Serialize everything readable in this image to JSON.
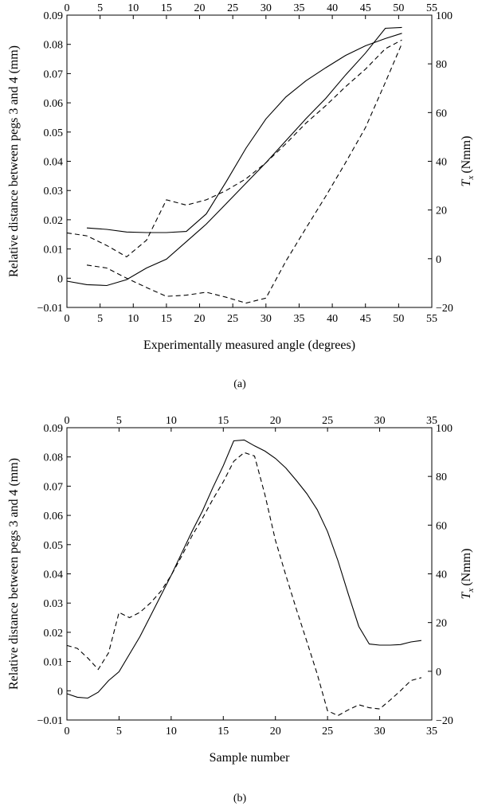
{
  "chart_data": [
    {
      "panel_label": "(a)",
      "type": "line",
      "xlabel": "Experimentally measured angle (degrees)",
      "ylabel_left": "Relative distance between pegs 3 and 4 (mm)",
      "ylabel_right_symbol": "T",
      "ylabel_right_sub": "x",
      "ylabel_right_unit": "(Nmm)",
      "xlim": [
        0,
        55
      ],
      "ylim_left": [
        -0.01,
        0.09
      ],
      "ylim_right": [
        -20,
        100
      ],
      "x_ticks": [
        "0",
        "5",
        "10",
        "15",
        "20",
        "25",
        "30",
        "35",
        "40",
        "45",
        "50",
        "55"
      ],
      "y_left_ticks": [
        "−0.01",
        "0",
        "0.01",
        "0.02",
        "0.03",
        "0.04",
        "0.05",
        "0.06",
        "0.07",
        "0.08",
        "0.09"
      ],
      "y_right_ticks": [
        "−20",
        "0",
        "20",
        "40",
        "60",
        "80",
        "100"
      ],
      "series": [
        {
          "style": "solid",
          "axis": "left",
          "x": [
            0,
            3,
            6,
            9,
            12,
            15,
            18,
            21,
            24,
            27,
            30,
            33,
            36,
            39,
            42,
            45,
            48,
            50.5
          ],
          "y": [
            -0.001,
            -0.0022,
            -0.0025,
            -0.0005,
            0.0035,
            0.0065,
            0.0125,
            0.0185,
            0.0255,
            0.0325,
            0.0395,
            0.047,
            0.0545,
            0.0615,
            0.0695,
            0.077,
            0.0855,
            0.0858
          ]
        },
        {
          "style": "solid",
          "axis": "left",
          "x": [
            3,
            6,
            9,
            12,
            15,
            18,
            21,
            24,
            27,
            30,
            33,
            36,
            39,
            42,
            45,
            48,
            50.5
          ],
          "y": [
            0.0172,
            0.0167,
            0.0158,
            0.0156,
            0.0156,
            0.016,
            0.022,
            0.033,
            0.0445,
            0.0545,
            0.062,
            0.0675,
            0.072,
            0.0762,
            0.0795,
            0.082,
            0.0838
          ]
        },
        {
          "style": "dashed",
          "axis": "left",
          "x": [
            0,
            3,
            6,
            9,
            12,
            15,
            18,
            21,
            24,
            27,
            30,
            33,
            36,
            39,
            42,
            45,
            48,
            50.5
          ],
          "y": [
            0.0155,
            0.0145,
            0.0112,
            0.0073,
            0.013,
            0.0268,
            0.025,
            0.0268,
            0.03,
            0.034,
            0.0395,
            0.046,
            0.053,
            0.059,
            0.0655,
            0.0715,
            0.0785,
            0.0815
          ]
        },
        {
          "style": "dashed",
          "axis": "left",
          "x": [
            3,
            6,
            9,
            12,
            15,
            18,
            21,
            24,
            27,
            30,
            33,
            36,
            39,
            42,
            45,
            48,
            50.5
          ],
          "y": [
            0.0045,
            0.0035,
            0.0,
            -0.0032,
            -0.0062,
            -0.0058,
            -0.0048,
            -0.0065,
            -0.0085,
            -0.0068,
            0.0058,
            0.017,
            0.028,
            0.0395,
            0.0515,
            0.067,
            0.0803
          ]
        }
      ]
    },
    {
      "panel_label": "(b)",
      "type": "line",
      "xlabel": "Sample number",
      "ylabel_left": "Relative distance between pegs 3 and 4 (mm)",
      "ylabel_right_symbol": "T",
      "ylabel_right_sub": "x",
      "ylabel_right_unit": "(Nmm)",
      "xlim": [
        0,
        35
      ],
      "ylim_left": [
        -0.01,
        0.09
      ],
      "ylim_right": [
        -20,
        100
      ],
      "x_ticks": [
        "0",
        "5",
        "10",
        "15",
        "20",
        "25",
        "30",
        "35"
      ],
      "y_left_ticks": [
        "−0.01",
        "0",
        "0.01",
        "0.02",
        "0.03",
        "0.04",
        "0.05",
        "0.06",
        "0.07",
        "0.08",
        "0.09"
      ],
      "y_right_ticks": [
        "−20",
        "0",
        "20",
        "40",
        "60",
        "80",
        "100"
      ],
      "series": [
        {
          "style": "solid",
          "axis": "left",
          "x": [
            0,
            1,
            2,
            3,
            4,
            5,
            6,
            7,
            8,
            9,
            10,
            11,
            12,
            13,
            14,
            15,
            16,
            17,
            18,
            19,
            20,
            21,
            22,
            23,
            24,
            25,
            26,
            27,
            28,
            29,
            30,
            31,
            32,
            33,
            34
          ],
          "y": [
            -0.001,
            -0.0022,
            -0.0025,
            -0.0005,
            0.0035,
            0.0065,
            0.0125,
            0.0185,
            0.0255,
            0.0325,
            0.0395,
            0.047,
            0.0545,
            0.0615,
            0.0695,
            0.077,
            0.0855,
            0.0858,
            0.0838,
            0.082,
            0.0795,
            0.0762,
            0.072,
            0.0675,
            0.062,
            0.0545,
            0.0445,
            0.033,
            0.022,
            0.016,
            0.0156,
            0.0156,
            0.0158,
            0.0167,
            0.0172
          ]
        },
        {
          "style": "dashed",
          "axis": "left",
          "x": [
            0,
            1,
            2,
            3,
            4,
            5,
            6,
            7,
            8,
            9,
            10,
            11,
            12,
            13,
            14,
            15,
            16,
            17,
            18,
            19,
            20,
            21,
            22,
            23,
            24,
            25,
            26,
            27,
            28,
            29,
            30,
            31,
            32,
            33,
            34
          ],
          "y": [
            0.0155,
            0.0145,
            0.0112,
            0.0073,
            0.013,
            0.0268,
            0.025,
            0.0268,
            0.03,
            0.034,
            0.0395,
            0.046,
            0.053,
            0.059,
            0.0655,
            0.0715,
            0.0785,
            0.0815,
            0.0803,
            0.067,
            0.0515,
            0.0395,
            0.028,
            0.017,
            0.0058,
            -0.0068,
            -0.0085,
            -0.0065,
            -0.0048,
            -0.0058,
            -0.0062,
            -0.0032,
            0.0,
            0.0035,
            0.0045
          ]
        }
      ]
    }
  ]
}
